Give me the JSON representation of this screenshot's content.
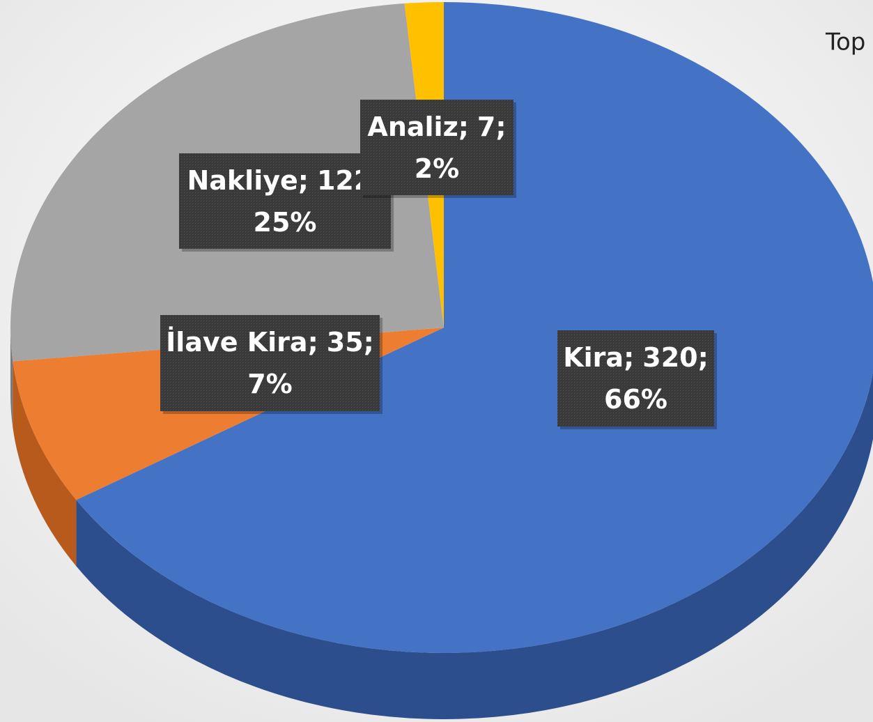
{
  "chart_data": {
    "type": "pie3d",
    "title": "Top",
    "categories": [
      "Kira",
      "İlave Kira",
      "Nakliye",
      "Analiz"
    ],
    "values": [
      320,
      35,
      122,
      7
    ],
    "percents": [
      66,
      7,
      25,
      2
    ],
    "percent_labels": [
      "66%",
      "7%",
      "25%",
      "2%"
    ],
    "separator": ";",
    "colors": [
      "#4472c4",
      "#ed7d31",
      "#a5a5a5",
      "#ffc000"
    ],
    "side_colors": [
      "#2d4e8c",
      "#b85a1c",
      "#7a7a7a",
      "#c49400"
    ]
  }
}
